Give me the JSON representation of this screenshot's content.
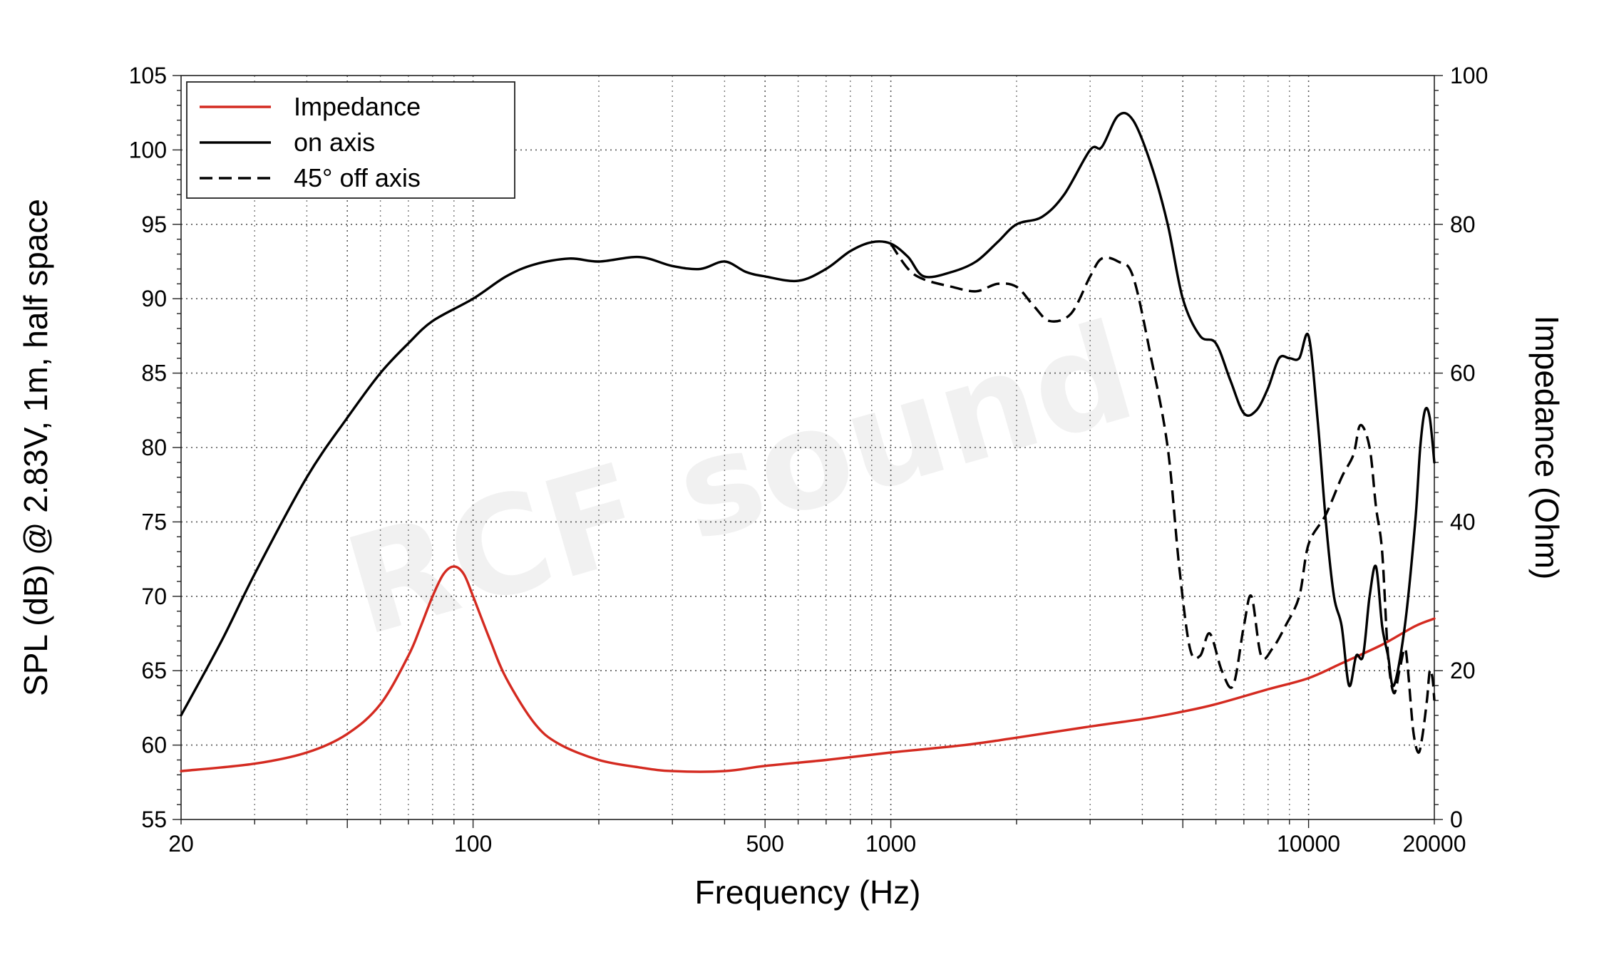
{
  "watermark": "RCF sound",
  "chart_data": {
    "type": "line",
    "xlabel": "Frequency (Hz)",
    "ylabel": "SPL (dB) @ 2.83V, 1m, half space",
    "y2label": "Impedance (Ohm)",
    "xscale": "log",
    "xlim": [
      20,
      20000
    ],
    "ylim": [
      55,
      105
    ],
    "y2lim": [
      0,
      100
    ],
    "grid": true,
    "legend_position": "top-left",
    "x_ticks": [
      20,
      100,
      500,
      1000,
      10000,
      20000
    ],
    "y_ticks": [
      55,
      60,
      65,
      70,
      75,
      80,
      85,
      90,
      95,
      100,
      105
    ],
    "y2_ticks": [
      0,
      20,
      40,
      60,
      80,
      100
    ],
    "series": [
      {
        "name": "Impedance",
        "axis": "right",
        "color": "#d42a20",
        "style": "solid",
        "points": [
          [
            20,
            6.5
          ],
          [
            30,
            7.5
          ],
          [
            40,
            9
          ],
          [
            50,
            11.5
          ],
          [
            60,
            15.5
          ],
          [
            70,
            22
          ],
          [
            75,
            26
          ],
          [
            80,
            30
          ],
          [
            85,
            33
          ],
          [
            90,
            34
          ],
          [
            95,
            33
          ],
          [
            100,
            30
          ],
          [
            110,
            24
          ],
          [
            120,
            19
          ],
          [
            140,
            13
          ],
          [
            160,
            10.2
          ],
          [
            200,
            8
          ],
          [
            250,
            7
          ],
          [
            300,
            6.5
          ],
          [
            400,
            6.5
          ],
          [
            500,
            7.2
          ],
          [
            700,
            8
          ],
          [
            1000,
            9
          ],
          [
            1500,
            10
          ],
          [
            2000,
            11
          ],
          [
            3000,
            12.5
          ],
          [
            4000,
            13.5
          ],
          [
            5000,
            14.5
          ],
          [
            6000,
            15.5
          ],
          [
            8000,
            17.5
          ],
          [
            10000,
            19
          ],
          [
            12000,
            21
          ],
          [
            15000,
            23.5
          ],
          [
            18000,
            26
          ],
          [
            20000,
            27
          ]
        ]
      },
      {
        "name": "on axis",
        "axis": "left",
        "color": "#000000",
        "style": "solid",
        "points": [
          [
            20,
            62
          ],
          [
            25,
            67
          ],
          [
            30,
            71.5
          ],
          [
            40,
            78
          ],
          [
            50,
            82
          ],
          [
            60,
            85
          ],
          [
            70,
            87
          ],
          [
            80,
            88.5
          ],
          [
            100,
            90
          ],
          [
            120,
            91.5
          ],
          [
            140,
            92.3
          ],
          [
            170,
            92.7
          ],
          [
            200,
            92.5
          ],
          [
            250,
            92.8
          ],
          [
            300,
            92.2
          ],
          [
            350,
            92
          ],
          [
            400,
            92.5
          ],
          [
            450,
            91.8
          ],
          [
            500,
            91.5
          ],
          [
            600,
            91.2
          ],
          [
            700,
            92
          ],
          [
            800,
            93.2
          ],
          [
            900,
            93.8
          ],
          [
            1000,
            93.7
          ],
          [
            1100,
            92.8
          ],
          [
            1200,
            91.5
          ],
          [
            1400,
            91.8
          ],
          [
            1600,
            92.5
          ],
          [
            1800,
            93.8
          ],
          [
            2000,
            95
          ],
          [
            2300,
            95.5
          ],
          [
            2600,
            97
          ],
          [
            3000,
            100
          ],
          [
            3200,
            100.2
          ],
          [
            3500,
            102.3
          ],
          [
            3800,
            102
          ],
          [
            4200,
            99
          ],
          [
            4600,
            95
          ],
          [
            5000,
            90
          ],
          [
            5500,
            87.5
          ],
          [
            6000,
            87
          ],
          [
            6500,
            84.5
          ],
          [
            7000,
            82.3
          ],
          [
            7500,
            82.5
          ],
          [
            8000,
            84
          ],
          [
            8500,
            86
          ],
          [
            9000,
            86
          ],
          [
            9500,
            86
          ],
          [
            10000,
            87.5
          ],
          [
            10500,
            82
          ],
          [
            11000,
            75
          ],
          [
            11500,
            70
          ],
          [
            12000,
            68
          ],
          [
            12500,
            64
          ],
          [
            13000,
            66
          ],
          [
            13500,
            66
          ],
          [
            14000,
            70
          ],
          [
            14500,
            72
          ],
          [
            15000,
            68
          ],
          [
            15500,
            66
          ],
          [
            16000,
            64
          ],
          [
            17000,
            68
          ],
          [
            18000,
            75
          ],
          [
            18500,
            80
          ],
          [
            19000,
            82.5
          ],
          [
            19500,
            82
          ],
          [
            20000,
            79
          ]
        ]
      },
      {
        "name": "45° off axis",
        "axis": "left",
        "color": "#000000",
        "style": "dashed",
        "points": [
          [
            1000,
            93.7
          ],
          [
            1100,
            92
          ],
          [
            1200,
            91.3
          ],
          [
            1400,
            90.8
          ],
          [
            1600,
            90.5
          ],
          [
            1800,
            91
          ],
          [
            2000,
            90.8
          ],
          [
            2200,
            89.5
          ],
          [
            2400,
            88.5
          ],
          [
            2700,
            89
          ],
          [
            3000,
            91.5
          ],
          [
            3200,
            92.7
          ],
          [
            3500,
            92.5
          ],
          [
            3800,
            91.5
          ],
          [
            4200,
            86
          ],
          [
            4600,
            80
          ],
          [
            4900,
            72
          ],
          [
            5200,
            66.5
          ],
          [
            5500,
            66
          ],
          [
            5800,
            67.5
          ],
          [
            6200,
            65
          ],
          [
            6600,
            64
          ],
          [
            7000,
            68
          ],
          [
            7300,
            70
          ],
          [
            7700,
            66
          ],
          [
            8200,
            66.5
          ],
          [
            8800,
            68
          ],
          [
            9500,
            70
          ],
          [
            10000,
            73.5
          ],
          [
            11000,
            75.5
          ],
          [
            12000,
            78
          ],
          [
            12800,
            79.5
          ],
          [
            13300,
            81.5
          ],
          [
            14000,
            80
          ],
          [
            14500,
            76
          ],
          [
            15000,
            73
          ],
          [
            15500,
            66
          ],
          [
            16000,
            63.5
          ],
          [
            16500,
            65
          ],
          [
            17000,
            66.5
          ],
          [
            17300,
            65
          ],
          [
            17800,
            61
          ],
          [
            18300,
            59.5
          ],
          [
            18700,
            60.5
          ],
          [
            19200,
            63
          ],
          [
            19500,
            65
          ],
          [
            19800,
            64.5
          ],
          [
            20000,
            63
          ]
        ]
      }
    ]
  }
}
